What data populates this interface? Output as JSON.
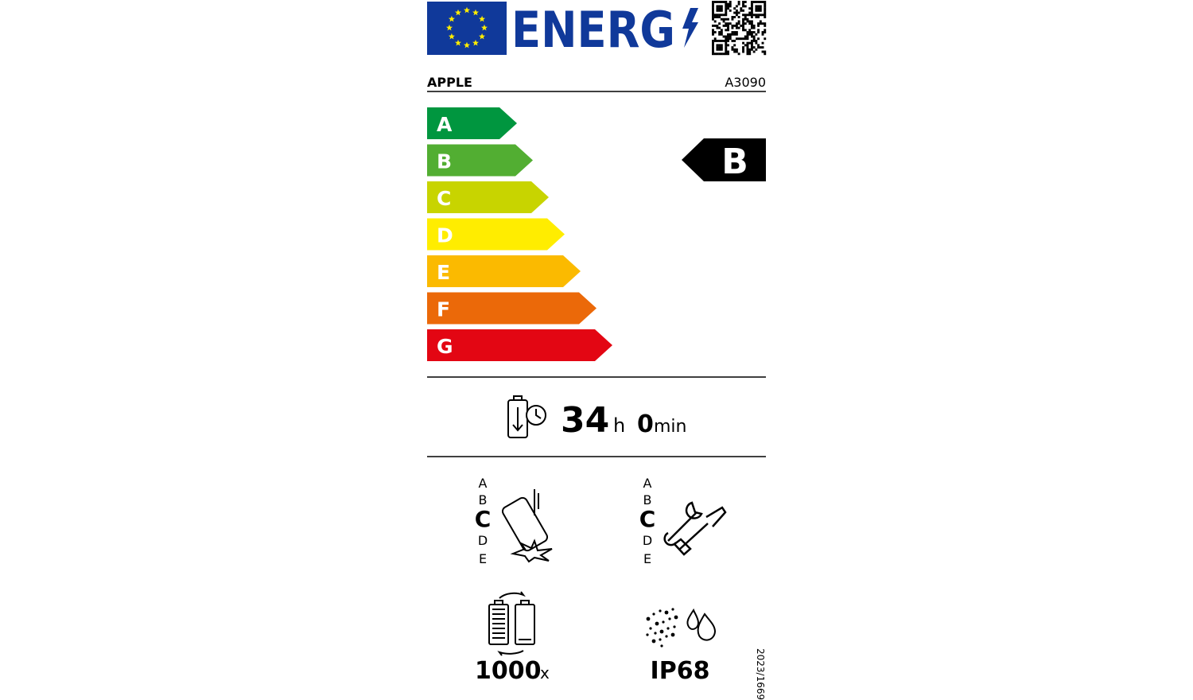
{
  "header": {
    "logo_text": "ENERG"
  },
  "supplier": "APPLE",
  "model": "A3090",
  "scale": {
    "classes": [
      "A",
      "B",
      "C",
      "D",
      "E",
      "F",
      "G"
    ],
    "colors": [
      "#00963f",
      "#52ae32",
      "#c8d400",
      "#ffed00",
      "#fbba00",
      "#eb6909",
      "#e30613"
    ]
  },
  "rating": "B",
  "battery_endurance": {
    "hours": 34,
    "hours_unit": "h",
    "minutes": 0,
    "minutes_unit": "min"
  },
  "drop_resistance": {
    "scale": [
      "A",
      "B",
      "C",
      "D",
      "E"
    ],
    "rating": "C"
  },
  "repairability": {
    "scale": [
      "A",
      "B",
      "C",
      "D",
      "E"
    ],
    "rating": "C"
  },
  "battery_cycles": {
    "value": 1000,
    "unit": "x"
  },
  "ingress_protection": "IP68",
  "regulation": "2023/1669"
}
